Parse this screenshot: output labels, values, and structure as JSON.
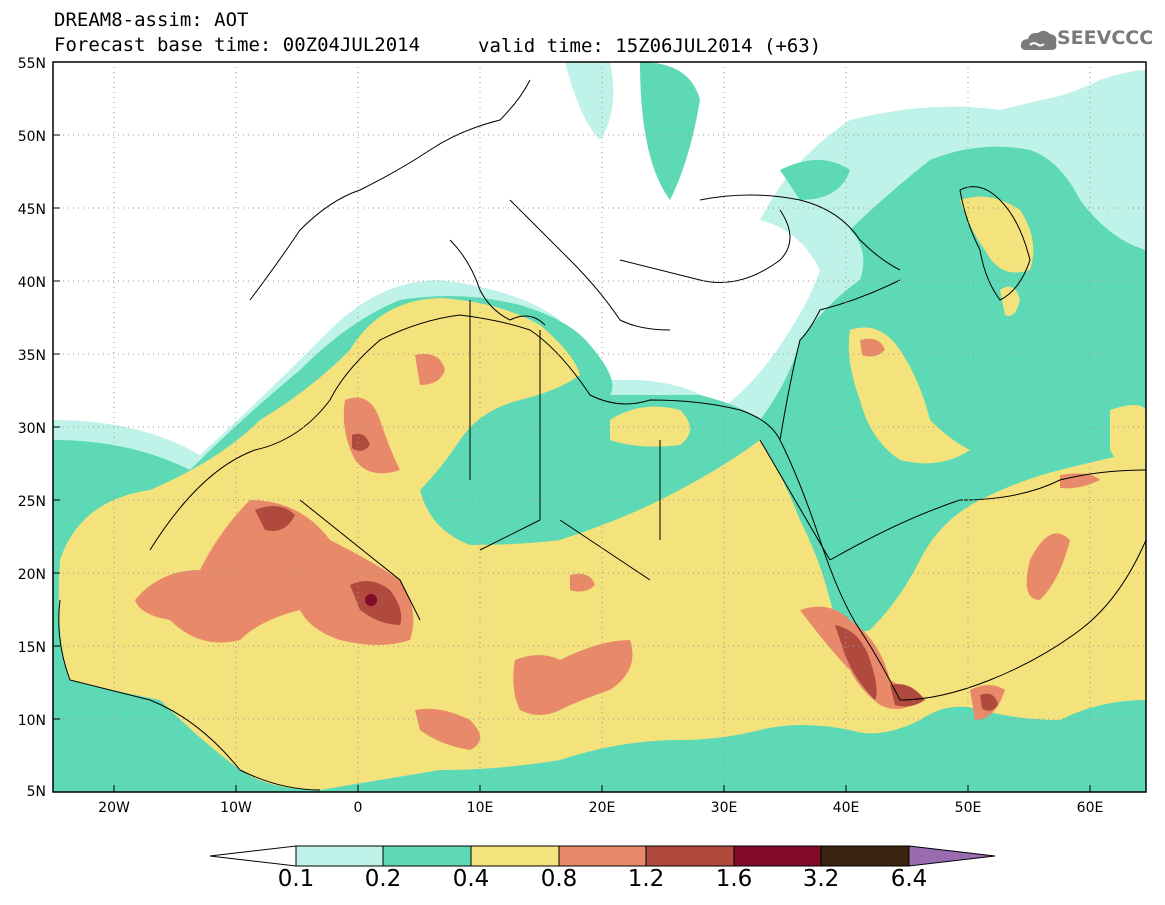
{
  "header": {
    "line1": "DREAM8-assim: AOT",
    "line2": "Forecast base time: 00Z04JUL2014",
    "valid": "valid time: 15Z06JUL2014 (+63)",
    "logo_text": "SEEVCCC"
  },
  "map": {
    "lat_range": [
      5,
      55
    ],
    "lon_range": [
      -25,
      65
    ],
    "lat_labels": [
      "55N",
      "50N",
      "45N",
      "40N",
      "35N",
      "30N",
      "25N",
      "20N",
      "15N",
      "10N",
      "5N"
    ],
    "lon_labels": [
      "20W",
      "10W",
      "0",
      "10E",
      "20E",
      "30E",
      "40E",
      "50E",
      "60E"
    ],
    "colorbar": {
      "levels": [
        "0.1",
        "0.2",
        "0.4",
        "0.8",
        "1.2",
        "1.6",
        "3.2",
        "6.4"
      ],
      "colors": [
        "#ffffff",
        "#bff2e8",
        "#5ddab5",
        "#f4e37c",
        "#e8896a",
        "#b04a3e",
        "#820a2a",
        "#3a2410",
        "#9b6bb0"
      ]
    }
  }
}
